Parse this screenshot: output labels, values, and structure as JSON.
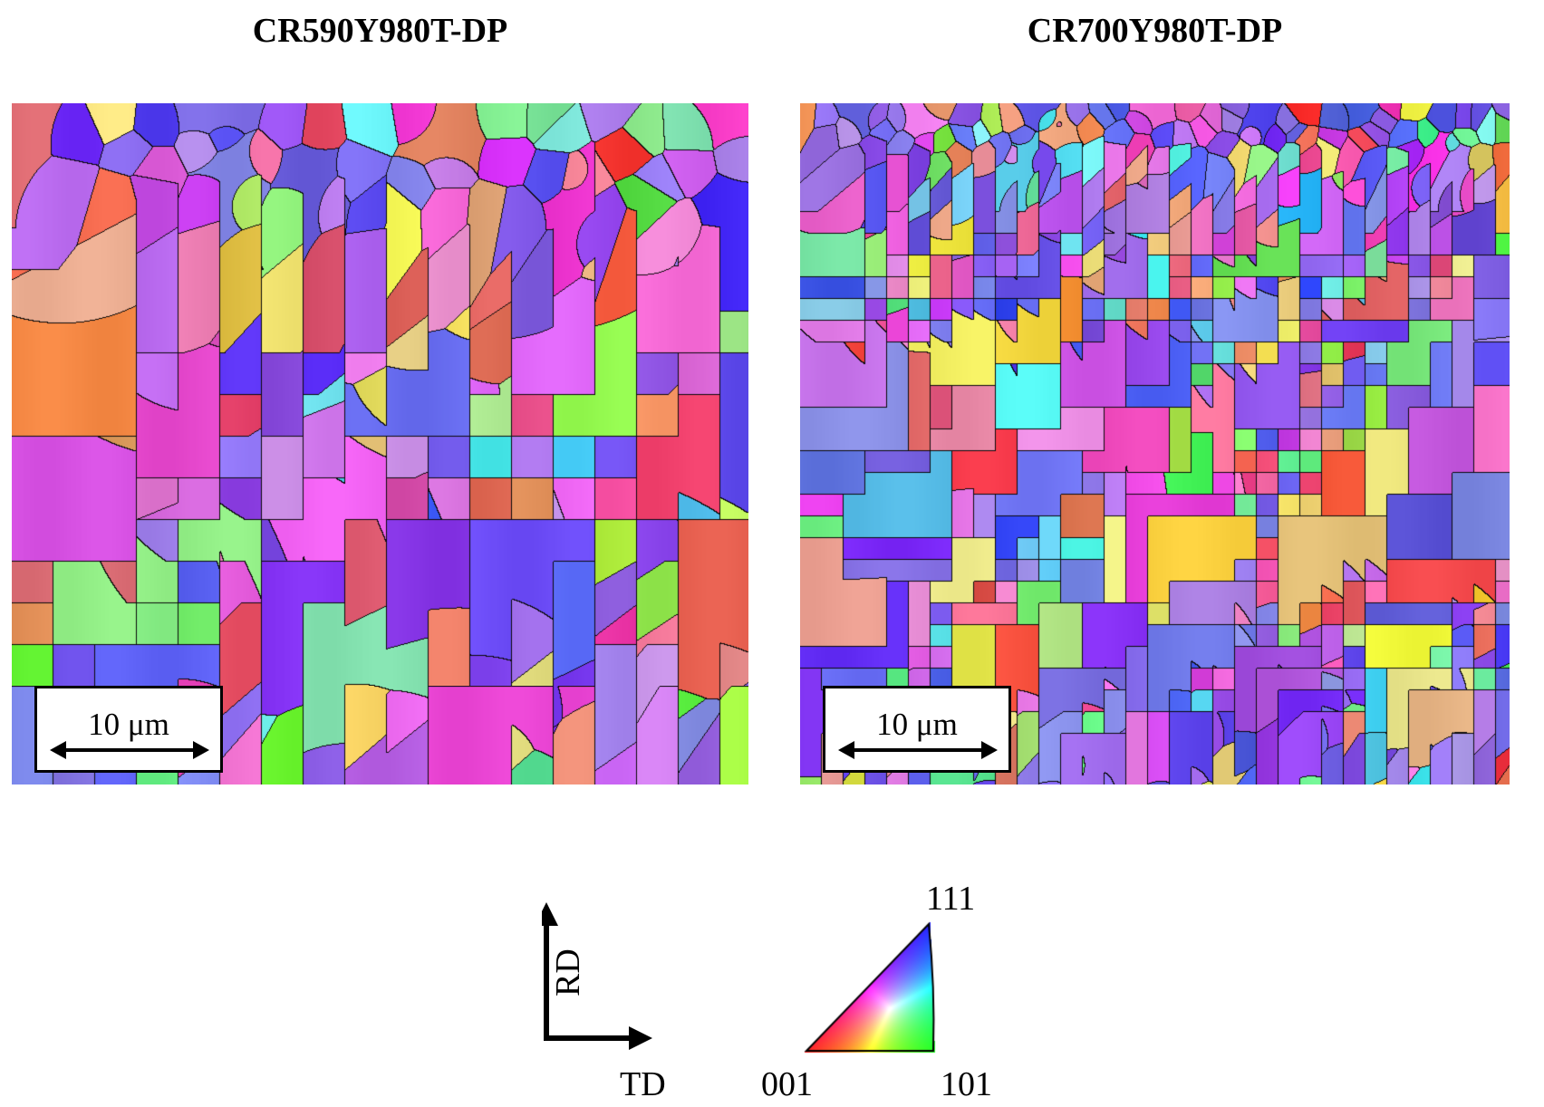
{
  "panels": [
    {
      "title": "CR590Y980T-DP",
      "scale_bar": "10 μm",
      "grain_character": "coarse"
    },
    {
      "title": "CR700Y980T-DP",
      "scale_bar": "10 μm",
      "grain_character": "fine"
    }
  ],
  "axes": {
    "vertical": "RD",
    "horizontal": "TD"
  },
  "ipf_key": {
    "corners": {
      "bottom_left": "001",
      "bottom_right": "101",
      "top": "111"
    },
    "colors": {
      "001": "#ff0000",
      "101": "#00ff00",
      "111": "#0000ff"
    }
  }
}
